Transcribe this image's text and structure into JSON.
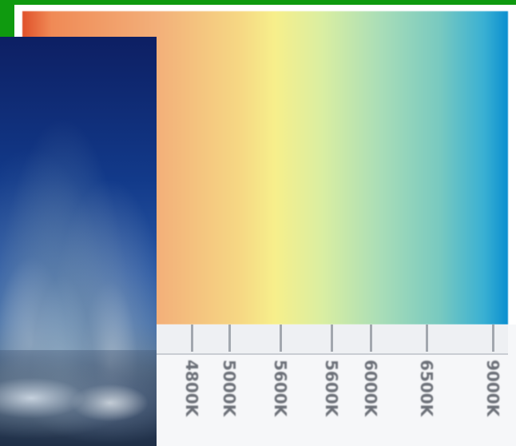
{
  "gradient": {
    "stops": [
      "#e0512a",
      "#f08a56",
      "#f3b07a",
      "#f6d884",
      "#f7ef8b",
      "#d9eea2",
      "#a8ddb8",
      "#78c9c0",
      "#3ab0d3",
      "#0a8fd0"
    ]
  },
  "labels": {
    "left": "",
    "right": ""
  },
  "axis": {
    "ticks": [
      {
        "label": "4800K"
      },
      {
        "label": "5000K"
      },
      {
        "label": "5600K"
      },
      {
        "label": "5600K"
      },
      {
        "label": "6000K"
      },
      {
        "label": "6500K"
      },
      {
        "label": "9000K"
      }
    ]
  },
  "photo": {
    "icon": "sky-landscape-image"
  },
  "colors": {
    "background": "#0f9a0f",
    "panel": "#ffffff",
    "label_left": "#f1e83a",
    "label_right": "#1e7fb6",
    "tick_text": "#6c7078"
  }
}
